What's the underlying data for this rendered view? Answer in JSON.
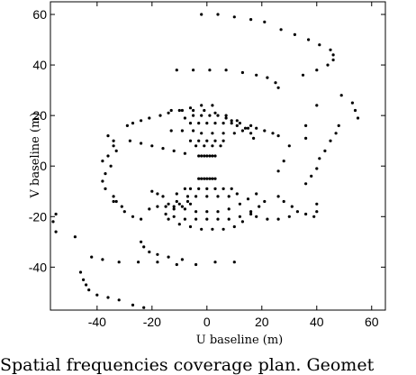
{
  "caption": "Spatial frequencies coverage plan. Geomet",
  "chart_data": {
    "type": "scatter",
    "xlabel": "U baseline (m)",
    "ylabel": "V baseline (m)",
    "xlim": [
      -57,
      65
    ],
    "ylim": [
      -57,
      65
    ],
    "xticks": [
      -40,
      -20,
      0,
      20,
      40,
      60
    ],
    "yticks": [
      -40,
      -20,
      0,
      20,
      40,
      60
    ],
    "xtick_labels": [
      "-40",
      "-20",
      "0",
      "20",
      "40",
      "60"
    ],
    "ytick_labels": [
      "-40",
      "-20",
      "0",
      "20",
      "40",
      "60"
    ],
    "grid": false,
    "marker_color": "#000000",
    "points": [
      [
        -2,
        60
      ],
      [
        4,
        60
      ],
      [
        10,
        59
      ],
      [
        16,
        58
      ],
      [
        21,
        57
      ],
      [
        27,
        54
      ],
      [
        32,
        52
      ],
      [
        37,
        50
      ],
      [
        41,
        48
      ],
      [
        45,
        46
      ],
      [
        46,
        44
      ],
      [
        46,
        42
      ],
      [
        44,
        40
      ],
      [
        40,
        38
      ],
      [
        35,
        36
      ],
      [
        -11,
        38
      ],
      [
        -5,
        38
      ],
      [
        1,
        38
      ],
      [
        7,
        38
      ],
      [
        13,
        37
      ],
      [
        18,
        36
      ],
      [
        22,
        35
      ],
      [
        25,
        33
      ],
      [
        26,
        31
      ],
      [
        -42,
        -36
      ],
      [
        -38,
        -37
      ],
      [
        -32,
        -38
      ],
      [
        -25,
        -38
      ],
      [
        -18,
        -38
      ],
      [
        -11,
        -39
      ],
      [
        -4,
        -39
      ],
      [
        3,
        -38
      ],
      [
        10,
        -38
      ],
      [
        -46,
        -42
      ],
      [
        -45,
        -45
      ],
      [
        -44,
        -47
      ],
      [
        -43,
        -49
      ],
      [
        -40,
        -51
      ],
      [
        -36,
        -52
      ],
      [
        -32,
        -53
      ],
      [
        -27,
        -55
      ],
      [
        -23,
        -56
      ],
      [
        -24,
        -30
      ],
      [
        -23,
        -32
      ],
      [
        -21,
        -34
      ],
      [
        -18,
        -35
      ],
      [
        -14,
        -36
      ],
      [
        -9,
        -37
      ],
      [
        -55,
        -19
      ],
      [
        -56,
        -22
      ],
      [
        -55,
        -26
      ],
      [
        -48,
        -28
      ],
      [
        54,
        22
      ],
      [
        53,
        25
      ],
      [
        55,
        19
      ],
      [
        49,
        28
      ],
      [
        48,
        16
      ],
      [
        47,
        13
      ],
      [
        45,
        10
      ],
      [
        43,
        6
      ],
      [
        41,
        3
      ],
      [
        40,
        -1
      ],
      [
        38,
        -4
      ],
      [
        36,
        -7
      ],
      [
        40,
        24
      ],
      [
        36,
        16
      ],
      [
        36,
        11
      ],
      [
        30,
        8
      ],
      [
        28,
        2
      ],
      [
        26,
        -2
      ],
      [
        -36,
        12
      ],
      [
        -34,
        10
      ],
      [
        -34,
        8
      ],
      [
        -33,
        6
      ],
      [
        -36,
        4
      ],
      [
        -38,
        2
      ],
      [
        -35,
        0
      ],
      [
        -37,
        -3
      ],
      [
        -38,
        -6
      ],
      [
        -37,
        -9
      ],
      [
        -34,
        -12
      ],
      [
        -33,
        -14
      ],
      [
        -29,
        16
      ],
      [
        -27,
        17
      ],
      [
        -24,
        18
      ],
      [
        -21,
        19
      ],
      [
        -17,
        20
      ],
      [
        -14,
        21
      ],
      [
        -10,
        22
      ],
      [
        -6,
        23
      ],
      [
        -2,
        24
      ],
      [
        2,
        24
      ],
      [
        -21,
        -17
      ],
      [
        -18,
        -16
      ],
      [
        -14,
        -15
      ],
      [
        -11,
        -14
      ],
      [
        -14,
        -21
      ],
      [
        -10,
        -23
      ],
      [
        -6,
        -24
      ],
      [
        -2,
        -25
      ],
      [
        2,
        -25
      ],
      [
        6,
        -25
      ],
      [
        10,
        -24
      ],
      [
        13,
        -22
      ],
      [
        -15,
        -19
      ],
      [
        -12,
        -17
      ],
      [
        -9,
        -16
      ],
      [
        -6,
        -15
      ],
      [
        -28,
        10
      ],
      [
        -24,
        9
      ],
      [
        -20,
        8
      ],
      [
        -16,
        7
      ],
      [
        -12,
        6
      ],
      [
        -8,
        5
      ],
      [
        -13,
        22
      ],
      [
        -9,
        22
      ],
      [
        -5,
        22
      ],
      [
        -1,
        22
      ],
      [
        3,
        21
      ],
      [
        7,
        20
      ],
      [
        11,
        18
      ],
      [
        14,
        15
      ],
      [
        16,
        13
      ],
      [
        17,
        11
      ],
      [
        -13,
        14
      ],
      [
        -9,
        14
      ],
      [
        -5,
        14
      ],
      [
        -2,
        13
      ],
      [
        2,
        13
      ],
      [
        6,
        13
      ],
      [
        10,
        13
      ],
      [
        13,
        14
      ],
      [
        15,
        15
      ],
      [
        -8,
        19
      ],
      [
        -5,
        20
      ],
      [
        -2,
        20
      ],
      [
        1,
        20
      ],
      [
        4,
        20
      ],
      [
        7,
        19
      ],
      [
        9,
        18
      ],
      [
        11,
        16
      ],
      [
        -6,
        17
      ],
      [
        -3,
        17
      ],
      [
        0,
        17
      ],
      [
        3,
        17
      ],
      [
        6,
        17
      ],
      [
        9,
        17
      ],
      [
        12,
        17
      ],
      [
        -6,
        10
      ],
      [
        -3,
        10
      ],
      [
        0,
        10
      ],
      [
        3,
        10
      ],
      [
        6,
        10
      ],
      [
        -4,
        8
      ],
      [
        -1,
        8
      ],
      [
        2,
        8
      ],
      [
        5,
        8
      ],
      [
        -3,
        4
      ],
      [
        -2,
        4
      ],
      [
        -1,
        4
      ],
      [
        0,
        4
      ],
      [
        1,
        4
      ],
      [
        2,
        4
      ],
      [
        3,
        4
      ],
      [
        -3,
        -5
      ],
      [
        -2,
        -5
      ],
      [
        -1,
        -5
      ],
      [
        0,
        -5
      ],
      [
        1,
        -5
      ],
      [
        2,
        -5
      ],
      [
        3,
        -5
      ],
      [
        -8,
        -9
      ],
      [
        -6,
        -9
      ],
      [
        -3,
        -9
      ],
      [
        0,
        -9
      ],
      [
        3,
        -9
      ],
      [
        6,
        -9
      ],
      [
        9,
        -9
      ],
      [
        -11,
        -11
      ],
      [
        -7,
        -12
      ],
      [
        -4,
        -12
      ],
      [
        0,
        -12
      ],
      [
        4,
        -12
      ],
      [
        8,
        -12
      ],
      [
        11,
        -11
      ],
      [
        -8,
        -17
      ],
      [
        -4,
        -18
      ],
      [
        0,
        -18
      ],
      [
        4,
        -18
      ],
      [
        8,
        -17
      ],
      [
        12,
        -15
      ],
      [
        15,
        -13
      ],
      [
        18,
        -11
      ],
      [
        -12,
        -20
      ],
      [
        -8,
        -21
      ],
      [
        -4,
        -21
      ],
      [
        0,
        -21
      ],
      [
        4,
        -21
      ],
      [
        8,
        -21
      ],
      [
        12,
        -20
      ],
      [
        16,
        -18
      ],
      [
        19,
        -16
      ],
      [
        21,
        -14
      ],
      [
        -15,
        -16
      ],
      [
        -12,
        -16
      ],
      [
        -10,
        -15
      ],
      [
        -7,
        -14
      ],
      [
        -20,
        -10
      ],
      [
        -18,
        -11
      ],
      [
        -16,
        -12
      ],
      [
        26,
        -12
      ],
      [
        28,
        -14
      ],
      [
        31,
        -16
      ],
      [
        33,
        -18
      ],
      [
        36,
        -19
      ],
      [
        39,
        -20
      ],
      [
        40,
        -18
      ],
      [
        40,
        -15
      ],
      [
        30,
        -20
      ],
      [
        26,
        -21
      ],
      [
        22,
        -21
      ],
      [
        18,
        -20
      ],
      [
        16,
        -19
      ],
      [
        26,
        12
      ],
      [
        24,
        13
      ],
      [
        21,
        14
      ],
      [
        18,
        15
      ],
      [
        16,
        16
      ],
      [
        -30,
        -18
      ],
      [
        -27,
        -20
      ],
      [
        -24,
        -21
      ],
      [
        -34,
        -14
      ],
      [
        -31,
        -16
      ]
    ]
  }
}
